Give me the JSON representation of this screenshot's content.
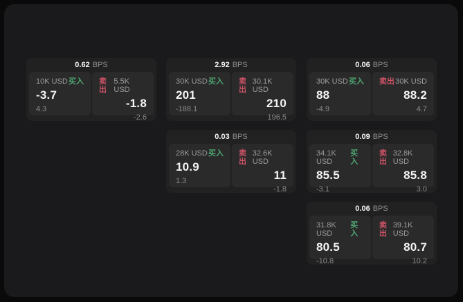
{
  "labels": {
    "bps_suffix": "BPS",
    "buy_label": "买入",
    "sell_label": "卖出"
  },
  "colors": {
    "buy_green": "#4fa571",
    "sell_red": "#cc5366",
    "panel_background": "#1a1a1c",
    "card_background": "#212122",
    "tile_background": "#2a2a2b",
    "outer_background": "#0a0a0a"
  },
  "cards": [
    {
      "bps": "0.62",
      "buy": {
        "size": "10K USD",
        "value": "-3.7",
        "delta": "4.3"
      },
      "sell": {
        "size": "5.5K USD",
        "value": "-1.8",
        "delta": "-2.6"
      }
    },
    {
      "bps": "2.92",
      "buy": {
        "size": "30K USD",
        "value": "201",
        "delta": "-188.1"
      },
      "sell": {
        "size": "30.1K USD",
        "value": "210",
        "delta": "196.5"
      }
    },
    {
      "bps": "0.06",
      "buy": {
        "size": "30K USD",
        "value": "88",
        "delta": "-4.9"
      },
      "sell": {
        "size": "30K USD",
        "value": "88.2",
        "delta": "4.7"
      }
    },
    {
      "bps": "0.03",
      "buy": {
        "size": "28K USD",
        "value": "10.9",
        "delta": "1.3"
      },
      "sell": {
        "size": "32.6K USD",
        "value": "11",
        "delta": "-1.8"
      }
    },
    {
      "bps": "0.09",
      "buy": {
        "size": "34.1K USD",
        "value": "85.5",
        "delta": "-3.1"
      },
      "sell": {
        "size": "32.8K USD",
        "value": "85.8",
        "delta": "3.0"
      }
    },
    {
      "bps": "0.06",
      "buy": {
        "size": "31.8K USD",
        "value": "80.5",
        "delta": "-10.8"
      },
      "sell": {
        "size": "39.1K USD",
        "value": "80.7",
        "delta": "10.2"
      }
    }
  ]
}
